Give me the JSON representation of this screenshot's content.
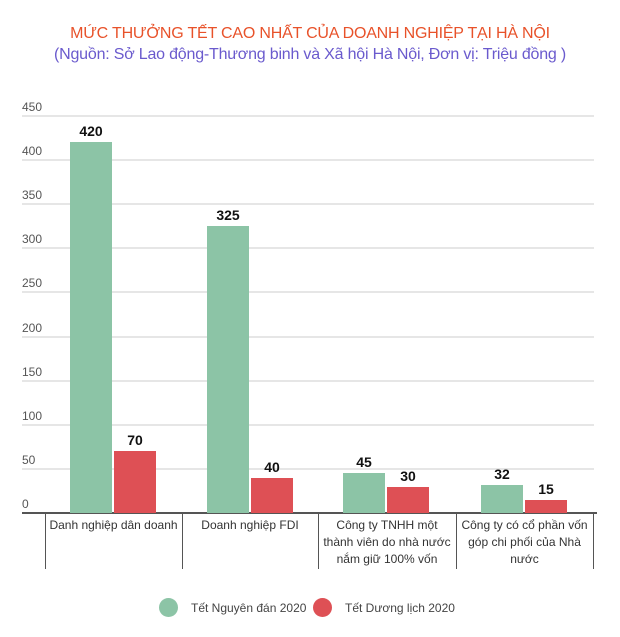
{
  "header": {
    "title": "MỨC THƯỞNG TẾT CAO NHẤT CỦA DOANH NGHIỆP TẠI HÀ NỘI",
    "subtitle": "(Nguồn: Sở Lao động-Thương binh và Xã hội Hà Nội, Đơn vị: Triệu đồng )"
  },
  "colors": {
    "title": "#e8522a",
    "subtitle": "#6a5acd",
    "series_1": "#8cc4a6",
    "series_2": "#de5055"
  },
  "axis": {
    "ticks": [
      "0",
      "50",
      "100",
      "150",
      "200",
      "250",
      "300",
      "350",
      "400",
      "450"
    ]
  },
  "categories": [
    "Danh nghiệp dân doanh",
    "Doanh nghiệp FDI",
    "Công ty TNHH một thành viên do nhà nước nắm giữ 100% vốn",
    "Công ty có cổ phần vốn góp chi phối của Nhà nước"
  ],
  "values": {
    "s1": [
      "420",
      "325",
      "45",
      "32"
    ],
    "s2": [
      "70",
      "40",
      "30",
      "15"
    ]
  },
  "legend": {
    "s1": "Tết Nguyên đán 2020",
    "s2": "Tết Dương lịch 2020"
  },
  "chart_data": {
    "type": "bar",
    "title": "MỨC THƯỞNG TẾT CAO NHẤT CỦA DOANH NGHIỆP TẠI HÀ NỘI",
    "subtitle": "(Nguồn: Sở Lao động-Thương binh và Xã hội Hà Nội, Đơn vị: Triệu đồng )",
    "categories": [
      "Danh nghiệp dân doanh",
      "Doanh nghiệp FDI",
      "Công ty TNHH một thành viên do nhà nước nắm giữ 100% vốn",
      "Công ty có cổ phần vốn góp chi phối của Nhà nước"
    ],
    "series": [
      {
        "name": "Tết Nguyên đán 2020",
        "color": "#8cc4a6",
        "values": [
          420,
          325,
          45,
          32
        ]
      },
      {
        "name": "Tết Dương lịch 2020",
        "color": "#de5055",
        "values": [
          70,
          40,
          30,
          15
        ]
      }
    ],
    "xlabel": "",
    "ylabel": "",
    "ylim": [
      0,
      450
    ],
    "yticks": [
      0,
      50,
      100,
      150,
      200,
      250,
      300,
      350,
      400,
      450
    ],
    "grid": true,
    "legend_position": "bottom",
    "data_labels": true
  }
}
